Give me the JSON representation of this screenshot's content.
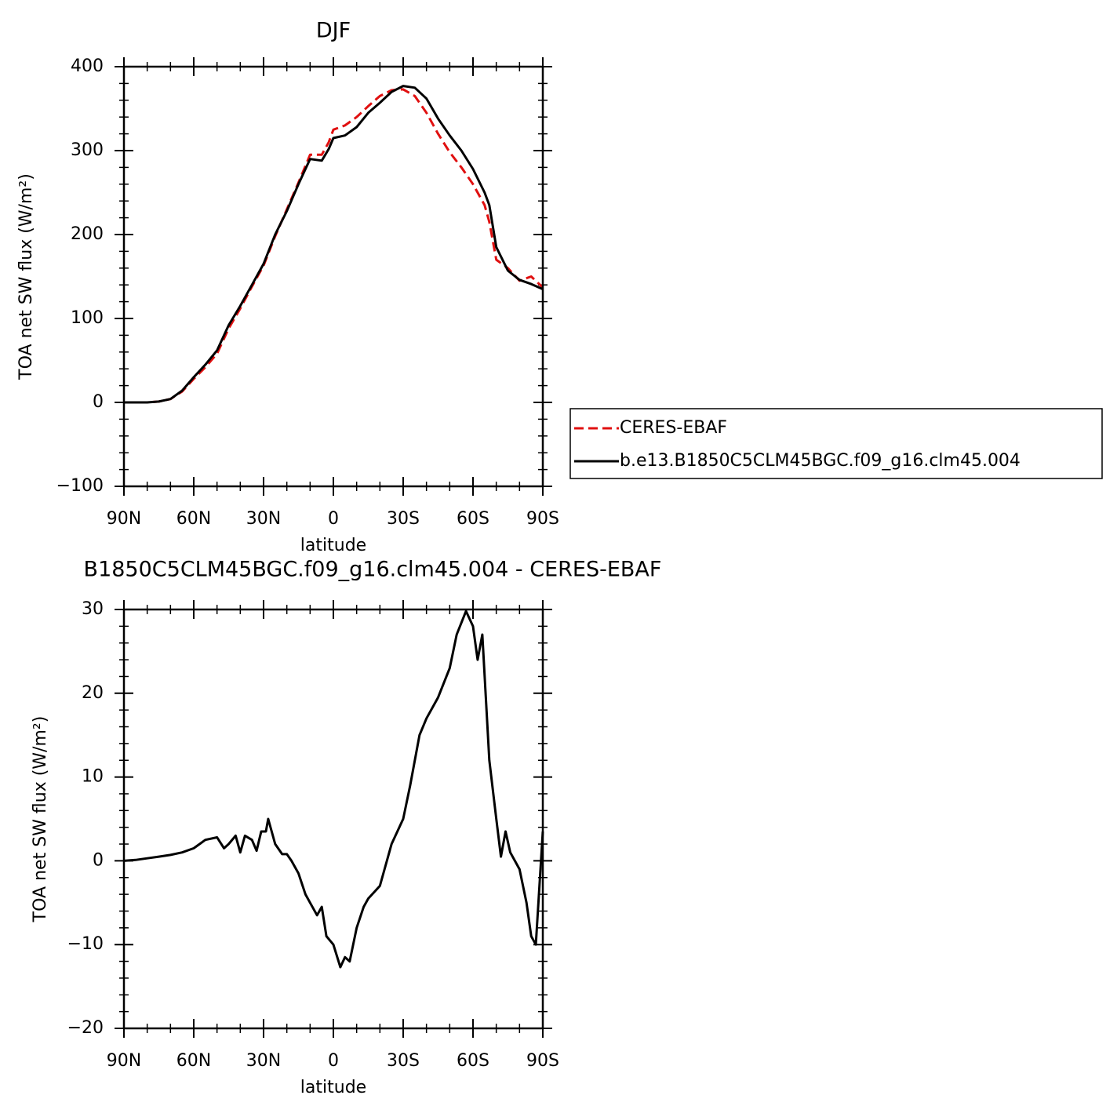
{
  "chart_data": [
    {
      "type": "line",
      "title": "DJF",
      "x_label": "latitude",
      "y_label": "TOA net SW flux (W/m²)",
      "x": [
        90,
        85,
        80,
        75,
        70,
        65,
        60,
        55,
        50,
        45,
        40,
        35,
        30,
        25,
        20,
        15,
        10,
        5,
        2,
        0,
        -5,
        -10,
        -15,
        -20,
        -25,
        -30,
        -35,
        -40,
        -45,
        -50,
        -55,
        -60,
        -65,
        -67,
        -70,
        -75,
        -80,
        -85,
        -90
      ],
      "series": [
        {
          "name": "CERES-EBAF",
          "color": "#e01010",
          "dashed": true,
          "values": [
            0,
            0,
            0,
            1,
            4,
            13,
            28,
            42,
            58,
            88,
            112,
            138,
            163,
            198,
            230,
            262,
            295,
            295,
            310,
            325,
            330,
            340,
            353,
            365,
            372,
            373,
            365,
            345,
            320,
            298,
            280,
            260,
            235,
            215,
            170,
            160,
            145,
            150,
            137
          ]
        },
        {
          "name": "b.e13.B1850C5CLM45BGC.f09_g16.clm45.004",
          "color": "#000000",
          "dashed": false,
          "values": [
            0,
            0,
            0,
            1,
            4,
            14,
            30,
            45,
            62,
            92,
            115,
            140,
            165,
            200,
            228,
            260,
            290,
            288,
            302,
            315,
            318,
            328,
            345,
            357,
            370,
            377,
            375,
            362,
            338,
            318,
            300,
            278,
            250,
            235,
            185,
            157,
            146,
            141,
            135
          ]
        }
      ],
      "xlim": [
        90,
        -90
      ],
      "xticks": [
        {
          "value": 90,
          "label": "90N"
        },
        {
          "value": 60,
          "label": "60N"
        },
        {
          "value": 30,
          "label": "30N"
        },
        0,
        {
          "value": -30,
          "label": "30S"
        },
        {
          "value": -60,
          "label": "60S"
        },
        {
          "value": -90,
          "label": "90S"
        }
      ],
      "ylim": [
        -100,
        400
      ],
      "yticks": [
        -100,
        0,
        100,
        200,
        300,
        400
      ],
      "legend": "right"
    },
    {
      "type": "line",
      "title": "B1850C5CLM45BGC.f09_g16.clm45.004 - CERES-EBAF",
      "x_label": "latitude",
      "y_label": "TOA net SW flux (W/m²)",
      "x": [
        90,
        85,
        80,
        75,
        70,
        65,
        60,
        55,
        50,
        47,
        45,
        42,
        40,
        38,
        35,
        33,
        31,
        29,
        28,
        25,
        22,
        20,
        18,
        15,
        12,
        10,
        7,
        5,
        3,
        0,
        -3,
        -5,
        -7,
        -10,
        -13,
        -15,
        -20,
        -25,
        -30,
        -33,
        -37,
        -40,
        -45,
        -50,
        -53,
        -57,
        -60,
        -62,
        -64,
        -67,
        -70,
        -72,
        -74,
        -76,
        -78,
        -80,
        -83,
        -85,
        -87,
        -90
      ],
      "series": [
        {
          "name": null,
          "color": "#000000",
          "dashed": false,
          "values": [
            0,
            0.1,
            0.3,
            0.5,
            0.7,
            1,
            1.5,
            2.5,
            2.8,
            1.5,
            2,
            3,
            1,
            3,
            2.5,
            1.2,
            3.5,
            3.5,
            5,
            2,
            0.8,
            0.8,
            0,
            -1.5,
            -4,
            -5,
            -6.5,
            -5.5,
            -9,
            -10,
            -12.7,
            -11.5,
            -12,
            -8,
            -5.5,
            -4.5,
            -3,
            2,
            5,
            9,
            15,
            17,
            19.5,
            23,
            27,
            29.8,
            28,
            24,
            27,
            12,
            5,
            0.5,
            3.5,
            1,
            0,
            -1,
            -5,
            -9,
            -10,
            3.5
          ]
        }
      ],
      "xlim": [
        90,
        -90
      ],
      "xticks": [
        {
          "value": 90,
          "label": "90N"
        },
        {
          "value": 60,
          "label": "60N"
        },
        {
          "value": 30,
          "label": "30N"
        },
        0,
        {
          "value": -30,
          "label": "30S"
        },
        {
          "value": -60,
          "label": "60S"
        },
        {
          "value": -90,
          "label": "90S"
        }
      ],
      "ylim": [
        -20,
        30
      ],
      "yticks": [
        -20,
        -10,
        0,
        10,
        20,
        30
      ]
    }
  ]
}
